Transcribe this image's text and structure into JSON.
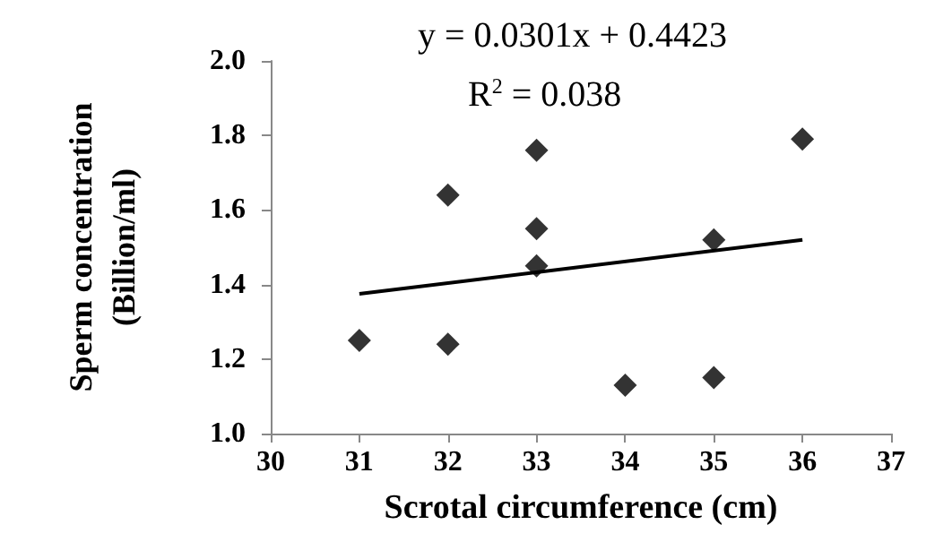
{
  "chart_data": {
    "type": "scatter",
    "xlabel": "Scrotal circumference (cm)",
    "ylabel": "Sperm concentration\n(Billion/ml)",
    "annotations": [
      "y = 0.0301x + 0.4423",
      "R$^{2}$ = 0.038"
    ],
    "xlim": [
      30,
      37
    ],
    "xticks": [
      30,
      31,
      32,
      33,
      34,
      35,
      36,
      37
    ],
    "ylim": [
      1.0,
      2.0
    ],
    "yticks": [
      {
        "value": 1,
        "label": "1.0"
      },
      1.2,
      1.4,
      1.6,
      1.8,
      {
        "value": 2,
        "label": "2.0"
      }
    ],
    "grid": false,
    "marker": "diamond",
    "series": [
      {
        "color": "#000000",
        "x": [
          31,
          32,
          32,
          33,
          33,
          33,
          34,
          35,
          35,
          36
        ],
        "values": [
          1.25,
          1.64,
          1.24,
          1.76,
          1.55,
          1.45,
          1.13,
          1.52,
          1.15,
          1.79
        ]
      },
      {
        "type": "line",
        "marker": "none",
        "line_style": "solid",
        "color": "#000000",
        "x": [
          31,
          36
        ],
        "values": [
          1.375,
          1.52
        ]
      }
    ]
  }
}
